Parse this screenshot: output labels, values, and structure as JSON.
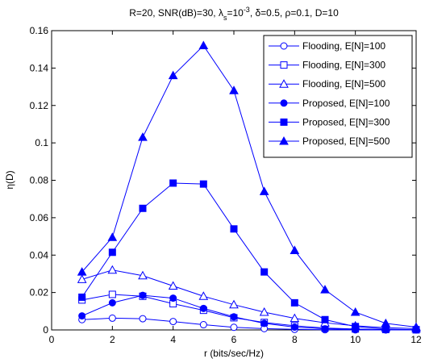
{
  "chart_data": {
    "type": "line",
    "title": {
      "main": "R=20, SNR(dB)=30, λ",
      "sub": "s",
      "mid": "=10",
      "sup": "-3",
      "rest": ", δ=0.5, ρ=0.1, D=10"
    },
    "xlabel": "r (bits/sec/Hz)",
    "ylabel": {
      "main": "η",
      "rest": "(D)"
    },
    "xlim": [
      0,
      12
    ],
    "ylim": [
      0,
      0.16
    ],
    "xticks": [
      0,
      2,
      4,
      6,
      8,
      10,
      12
    ],
    "yticks": [
      0,
      0.02,
      0.04,
      0.06,
      0.08,
      0.1,
      0.12,
      0.14,
      0.16
    ],
    "ytick_labels": [
      "0",
      "0.02",
      "0.04",
      "0.06",
      "0.08",
      "0.1",
      "0.12",
      "0.14",
      "0.16"
    ],
    "grid": false,
    "legend_position": "top-right",
    "color": "#0000ff",
    "x": [
      1,
      2,
      3,
      4,
      5,
      6,
      7,
      8,
      9,
      10,
      11,
      12
    ],
    "series": [
      {
        "name": "Flooding, E[N]=100",
        "marker": "circle",
        "filled": false,
        "values": [
          0.0055,
          0.0063,
          0.006,
          0.0045,
          0.0028,
          0.0014,
          0.0007,
          0.0003,
          0.0001,
          5e-05,
          2e-05,
          0.0
        ]
      },
      {
        "name": "Flooding, E[N]=300",
        "marker": "square",
        "filled": false,
        "values": [
          0.016,
          0.019,
          0.018,
          0.014,
          0.0105,
          0.0065,
          0.004,
          0.0022,
          0.001,
          0.0005,
          0.0002,
          0.0001
        ]
      },
      {
        "name": "Flooding, E[N]=500",
        "marker": "triangle",
        "filled": false,
        "values": [
          0.027,
          0.032,
          0.029,
          0.0235,
          0.018,
          0.0135,
          0.0095,
          0.0062,
          0.0038,
          0.0022,
          0.0012,
          0.0007
        ]
      },
      {
        "name": "Proposed, E[N]=100",
        "marker": "circle",
        "filled": true,
        "values": [
          0.0075,
          0.0145,
          0.0185,
          0.017,
          0.0115,
          0.007,
          0.0035,
          0.0015,
          0.0006,
          0.0002,
          5e-05,
          0.0
        ]
      },
      {
        "name": "Proposed, E[N]=300",
        "marker": "square",
        "filled": true,
        "values": [
          0.0175,
          0.0415,
          0.065,
          0.0785,
          0.078,
          0.054,
          0.031,
          0.0145,
          0.0055,
          0.0018,
          0.0005,
          0.0001
        ]
      },
      {
        "name": "Proposed, E[N]=500",
        "marker": "triangle",
        "filled": true,
        "values": [
          0.031,
          0.0495,
          0.103,
          0.136,
          0.152,
          0.128,
          0.074,
          0.0425,
          0.0215,
          0.0095,
          0.0035,
          0.0015
        ]
      }
    ]
  }
}
